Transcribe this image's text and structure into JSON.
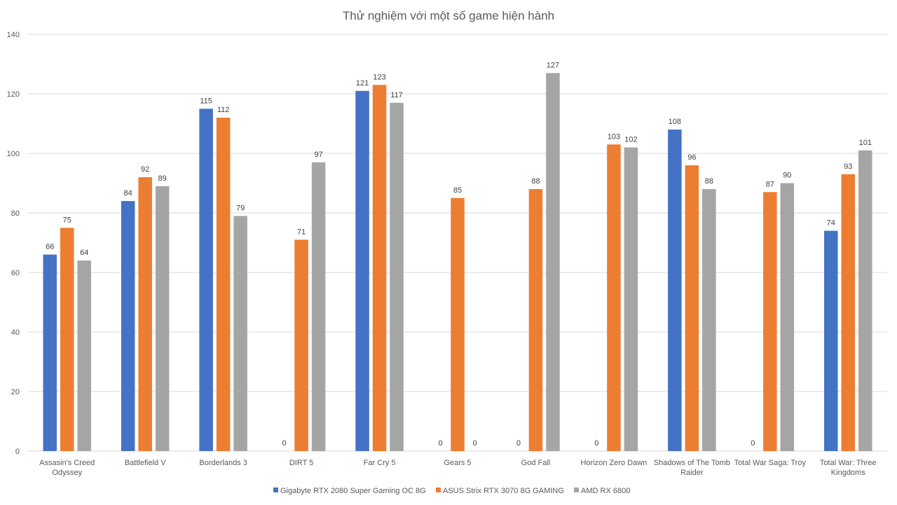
{
  "chart_data": {
    "type": "bar",
    "title": "Thử nghiệm với một số game hiện hành",
    "xlabel": "",
    "ylabel": "",
    "ylim": [
      0,
      140
    ],
    "yticks": [
      0,
      20,
      40,
      60,
      80,
      100,
      120,
      140
    ],
    "grid": true,
    "legend_position": "bottom",
    "categories": [
      [
        "Assasin's Creed",
        "Odyssey"
      ],
      [
        "Battlefield V"
      ],
      [
        "Borderlands 3"
      ],
      [
        "DIRT 5"
      ],
      [
        "Far Cry 5"
      ],
      [
        "Gears 5"
      ],
      [
        "God Fall"
      ],
      [
        "Horizon Zero Dawn"
      ],
      [
        "Shadows of The Tomb",
        "Raider"
      ],
      [
        "Total War Saga: Troy"
      ],
      [
        "Total War: Three",
        "Kingdoms"
      ]
    ],
    "series": [
      {
        "name": "Gigabyte RTX 2080 Super Gaming OC 8G",
        "color": "#4472c4",
        "values": [
          66,
          84,
          115,
          0,
          121,
          0,
          0,
          0,
          108,
          0,
          74
        ],
        "labels": [
          "66",
          "84",
          "115",
          "0",
          "121",
          "0",
          "0",
          "0",
          "108",
          "0",
          "74"
        ]
      },
      {
        "name": "ASUS Strix RTX 3070 8G GAMING",
        "color": "#ed7d31",
        "values": [
          75,
          92,
          112,
          71,
          123,
          85,
          88,
          103,
          96,
          87,
          93
        ],
        "labels": [
          "75",
          "92",
          "112",
          "71",
          "123",
          "85",
          "88",
          "103",
          "96",
          "87",
          "93"
        ]
      },
      {
        "name": "AMD RX 6800",
        "color": "#a5a5a5",
        "values": [
          64,
          89,
          79,
          97,
          117,
          0,
          127,
          102,
          88,
          90,
          101
        ],
        "labels": [
          "64",
          "89",
          "79",
          "97",
          "117",
          "0",
          "127",
          "102",
          "88",
          "90",
          "101"
        ]
      }
    ]
  }
}
